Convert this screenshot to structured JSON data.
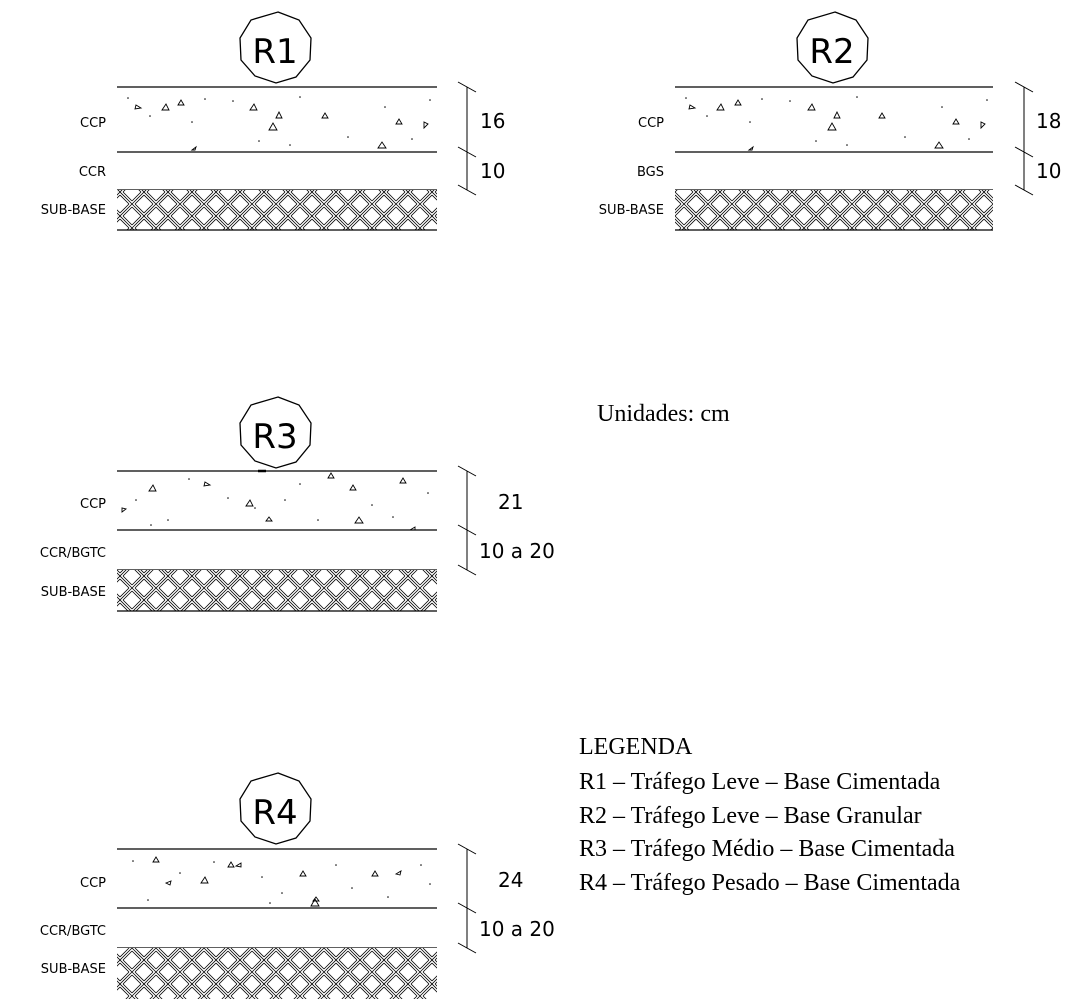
{
  "sections": [
    {
      "id": "R1",
      "badge": "R1",
      "layers": [
        "CCP",
        "CCR",
        "SUB-BASE"
      ],
      "dimensions": [
        "16",
        "10"
      ]
    },
    {
      "id": "R2",
      "badge": "R2",
      "layers": [
        "CCP",
        "BGS",
        "SUB-BASE"
      ],
      "dimensions": [
        "18",
        "10"
      ]
    },
    {
      "id": "R3",
      "badge": "R3",
      "layers": [
        "CCP",
        "CCR/BGTC",
        "SUB-BASE"
      ],
      "dimensions": [
        "21",
        "10 a 20"
      ]
    },
    {
      "id": "R4",
      "badge": "R4",
      "layers": [
        "CCP",
        "CCR/BGTC",
        "SUB-BASE"
      ],
      "dimensions": [
        "24",
        "10 a 20"
      ]
    }
  ],
  "units_note": "Unidades: cm",
  "legend": {
    "title": "LEGENDA",
    "items": [
      "R1 – Tráfego Leve – Base Cimentada",
      "R2 – Tráfego Leve – Base Granular",
      "R3 – Tráfego Médio – Base Cimentada",
      "R4 – Tráfego Pesado – Base Cimentada"
    ]
  }
}
